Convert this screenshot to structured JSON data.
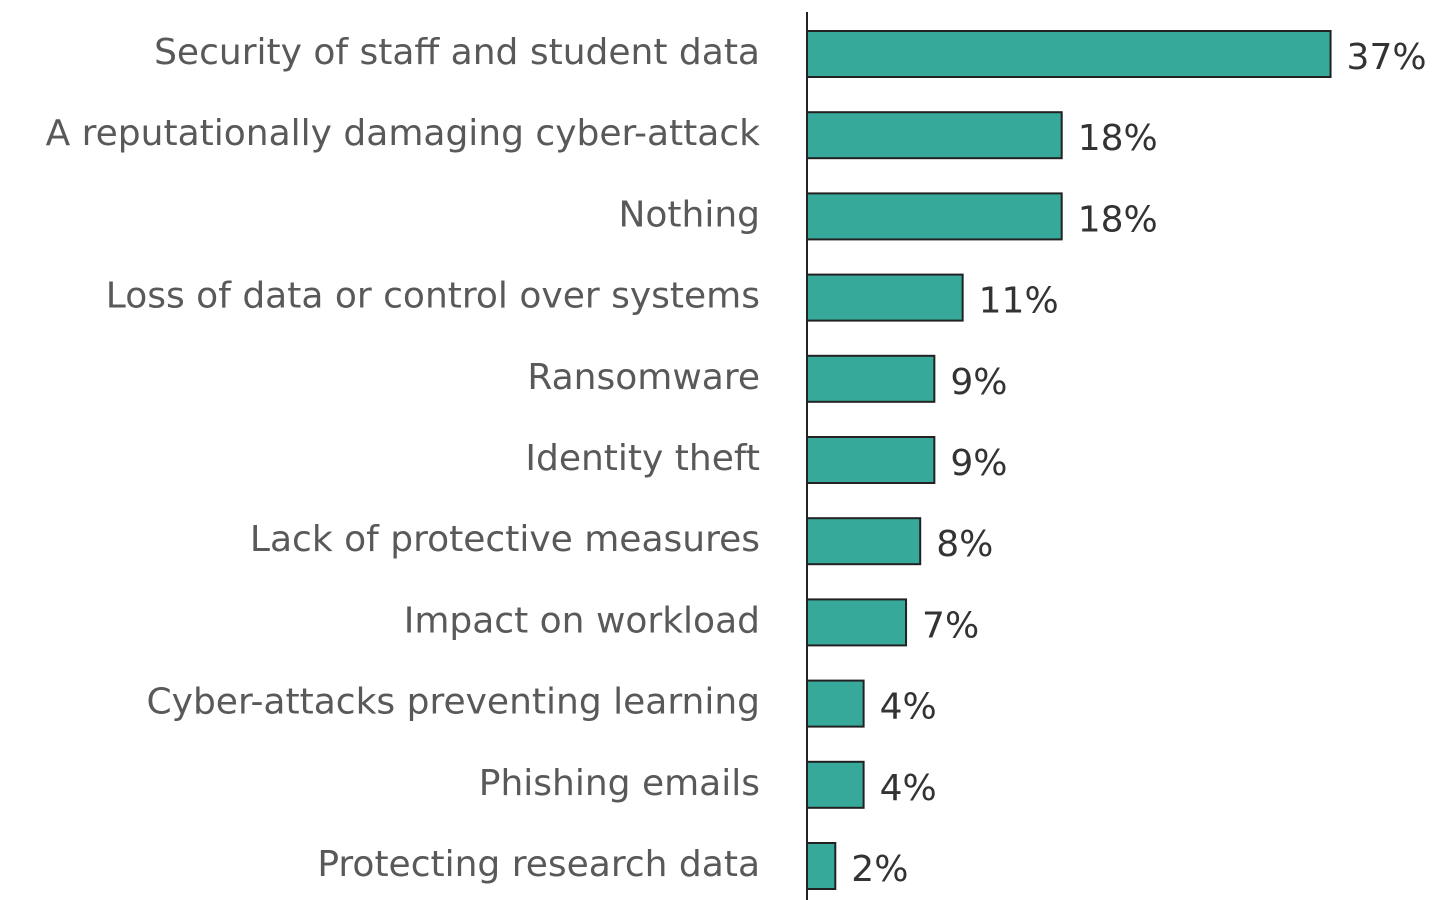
{
  "chart_data": {
    "type": "bar",
    "orientation": "horizontal",
    "categories": [
      "Security of staff and student data",
      "A reputationally damaging cyber-attack",
      "Nothing",
      "Loss of data or control over systems",
      "Ransomware",
      "Identity theft",
      "Lack of protective measures",
      "Impact on workload",
      "Cyber-attacks preventing learning",
      "Phishing emails",
      "Protecting research data"
    ],
    "values": [
      37,
      18,
      18,
      11,
      9,
      9,
      8,
      7,
      4,
      4,
      2
    ],
    "value_labels": [
      "37%",
      "18%",
      "18%",
      "11%",
      "9%",
      "9%",
      "8%",
      "7%",
      "4%",
      "4%",
      "2%"
    ],
    "color": "#36a99a",
    "xlim": [
      0,
      40
    ]
  }
}
